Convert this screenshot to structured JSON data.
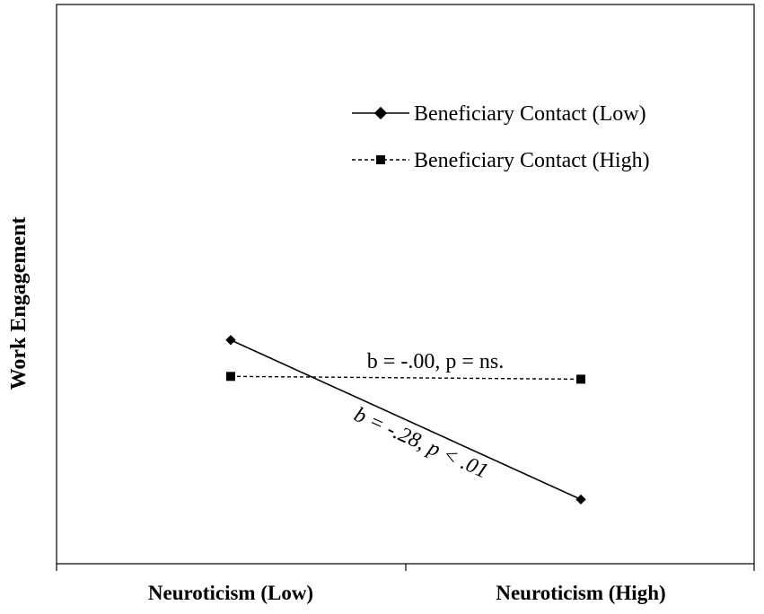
{
  "chart_data": {
    "type": "line",
    "title": "",
    "xlabel": "",
    "ylabel": "Work Engagement",
    "categories": [
      "Neuroticism (Low)",
      "Neuroticism (High)"
    ],
    "ylim": [
      0,
      1
    ],
    "grid": false,
    "legend_position": "top-right",
    "series": [
      {
        "name": "Beneficiary Contact (Low)",
        "values": [
          0.4,
          0.115
        ],
        "line_style": "solid",
        "marker": "diamond",
        "color": "#000000"
      },
      {
        "name": "Beneficiary Contact (High)",
        "values": [
          0.335,
          0.33
        ],
        "line_style": "dashed",
        "marker": "square",
        "color": "#000000"
      }
    ],
    "annotations": [
      {
        "text": "b = -.00, p = ns.",
        "series": 1
      },
      {
        "text": "b = -.28, p < .01",
        "series": 0,
        "style": "italic-rotated"
      }
    ]
  }
}
